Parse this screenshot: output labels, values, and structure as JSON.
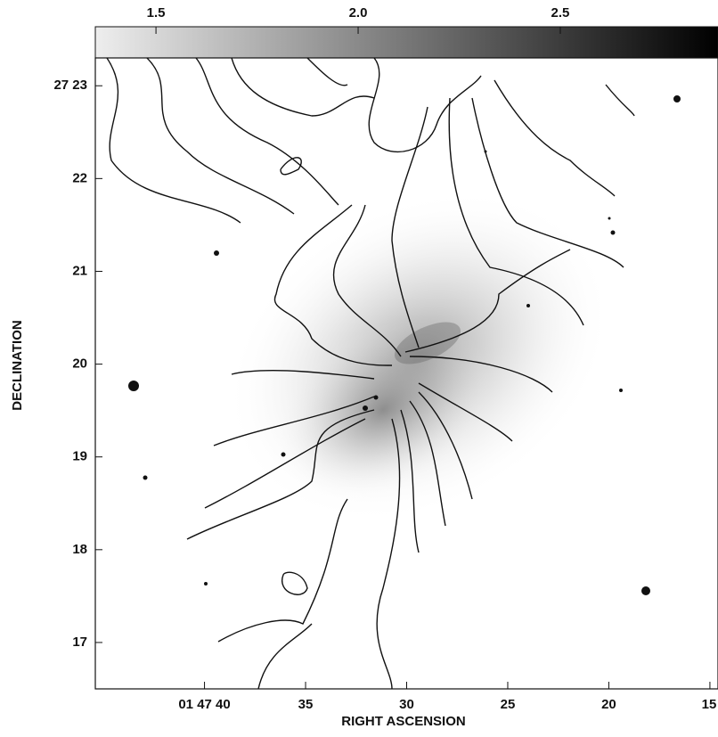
{
  "chart_data": {
    "type": "image",
    "xlabel": "RIGHT ASCENSION",
    "ylabel": "DECLINATION",
    "xlim": [
      45.4,
      14.6
    ],
    "xticks": [
      {
        "value": 40,
        "label": "01 47 40"
      },
      35,
      30,
      25,
      20,
      15
    ],
    "ylim": [
      16.5,
      23.3
    ],
    "yticks": [
      {
        "value": 23,
        "label": "27 23"
      },
      22,
      21,
      20,
      19,
      18,
      17
    ],
    "clim": [
      1.35,
      2.89
    ],
    "cticks": [
      {
        "value": 1.5,
        "label": "1.5"
      },
      {
        "value": 2.0,
        "label": "2.0"
      },
      {
        "value": 2.5,
        "label": "2.5"
      }
    ],
    "colormap": [
      "#eeeeee",
      "#000000"
    ]
  }
}
